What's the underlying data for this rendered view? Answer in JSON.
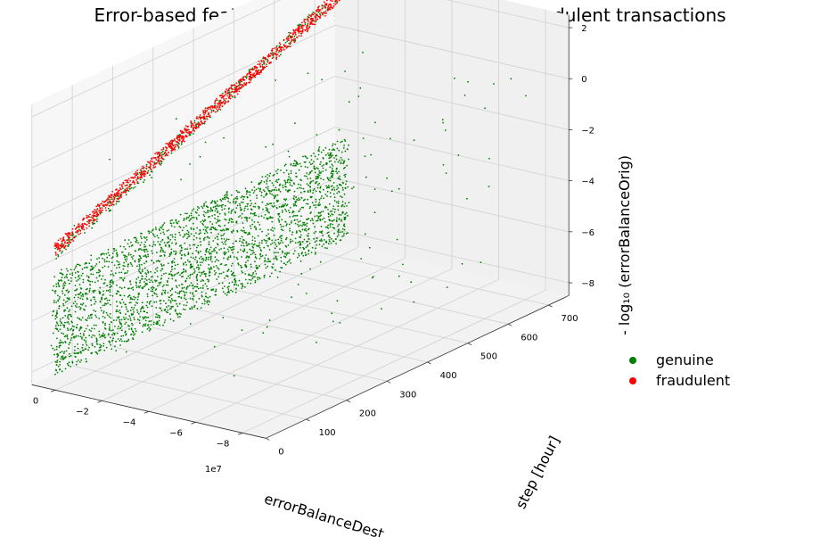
{
  "chart_data": {
    "type": "scatter",
    "projection": "3d",
    "title": "Error-based features separate out genuine and fraudulent transactions",
    "xlabel": "errorBalanceDest",
    "x_offset_text": "1e7",
    "ylabel": "step [hour]",
    "zlabel": "- log₁₀ (errorBalanceOrig)",
    "xlim": [
      -9,
      1
    ],
    "ylim": [
      0,
      750
    ],
    "zlim": [
      -8.5,
      2.5
    ],
    "x_ticks": [
      -8,
      -6,
      -4,
      -2,
      0
    ],
    "x_tick_labels": [
      "−8",
      "−6",
      "−4",
      "−2",
      "0"
    ],
    "y_ticks": [
      0,
      100,
      200,
      300,
      400,
      500,
      600,
      700
    ],
    "y_tick_labels": [
      "0",
      "100",
      "200",
      "300",
      "400",
      "500",
      "600",
      "700"
    ],
    "z_ticks": [
      -8,
      -6,
      -4,
      -2,
      0,
      2
    ],
    "z_tick_labels": [
      "−8",
      "−6",
      "−4",
      "−2",
      "0",
      "2"
    ],
    "grid": true,
    "legend_position": "right",
    "series": [
      {
        "name": "genuine",
        "color": "#008000",
        "clusters": [
          {
            "x": [
              -0.05,
              0.2
            ],
            "y": [
              0,
              730
            ],
            "z": [
              -8,
              -4
            ],
            "count": 2800
          },
          {
            "x": [
              -0.05,
              0.05
            ],
            "y": [
              0,
              730
            ],
            "z": [
              -3.2,
              2
            ],
            "count": 350
          },
          {
            "x": [
              -8,
              0
            ],
            "y": [
              0,
              730
            ],
            "z": [
              -8,
              1
            ],
            "count": 140
          }
        ]
      },
      {
        "name": "fraudulent",
        "color": "#ff0000",
        "clusters": [
          {
            "x": [
              -0.05,
              0.05
            ],
            "y": [
              0,
              745
            ],
            "z": [
              -3,
              2
            ],
            "count": 1100
          }
        ]
      }
    ]
  }
}
